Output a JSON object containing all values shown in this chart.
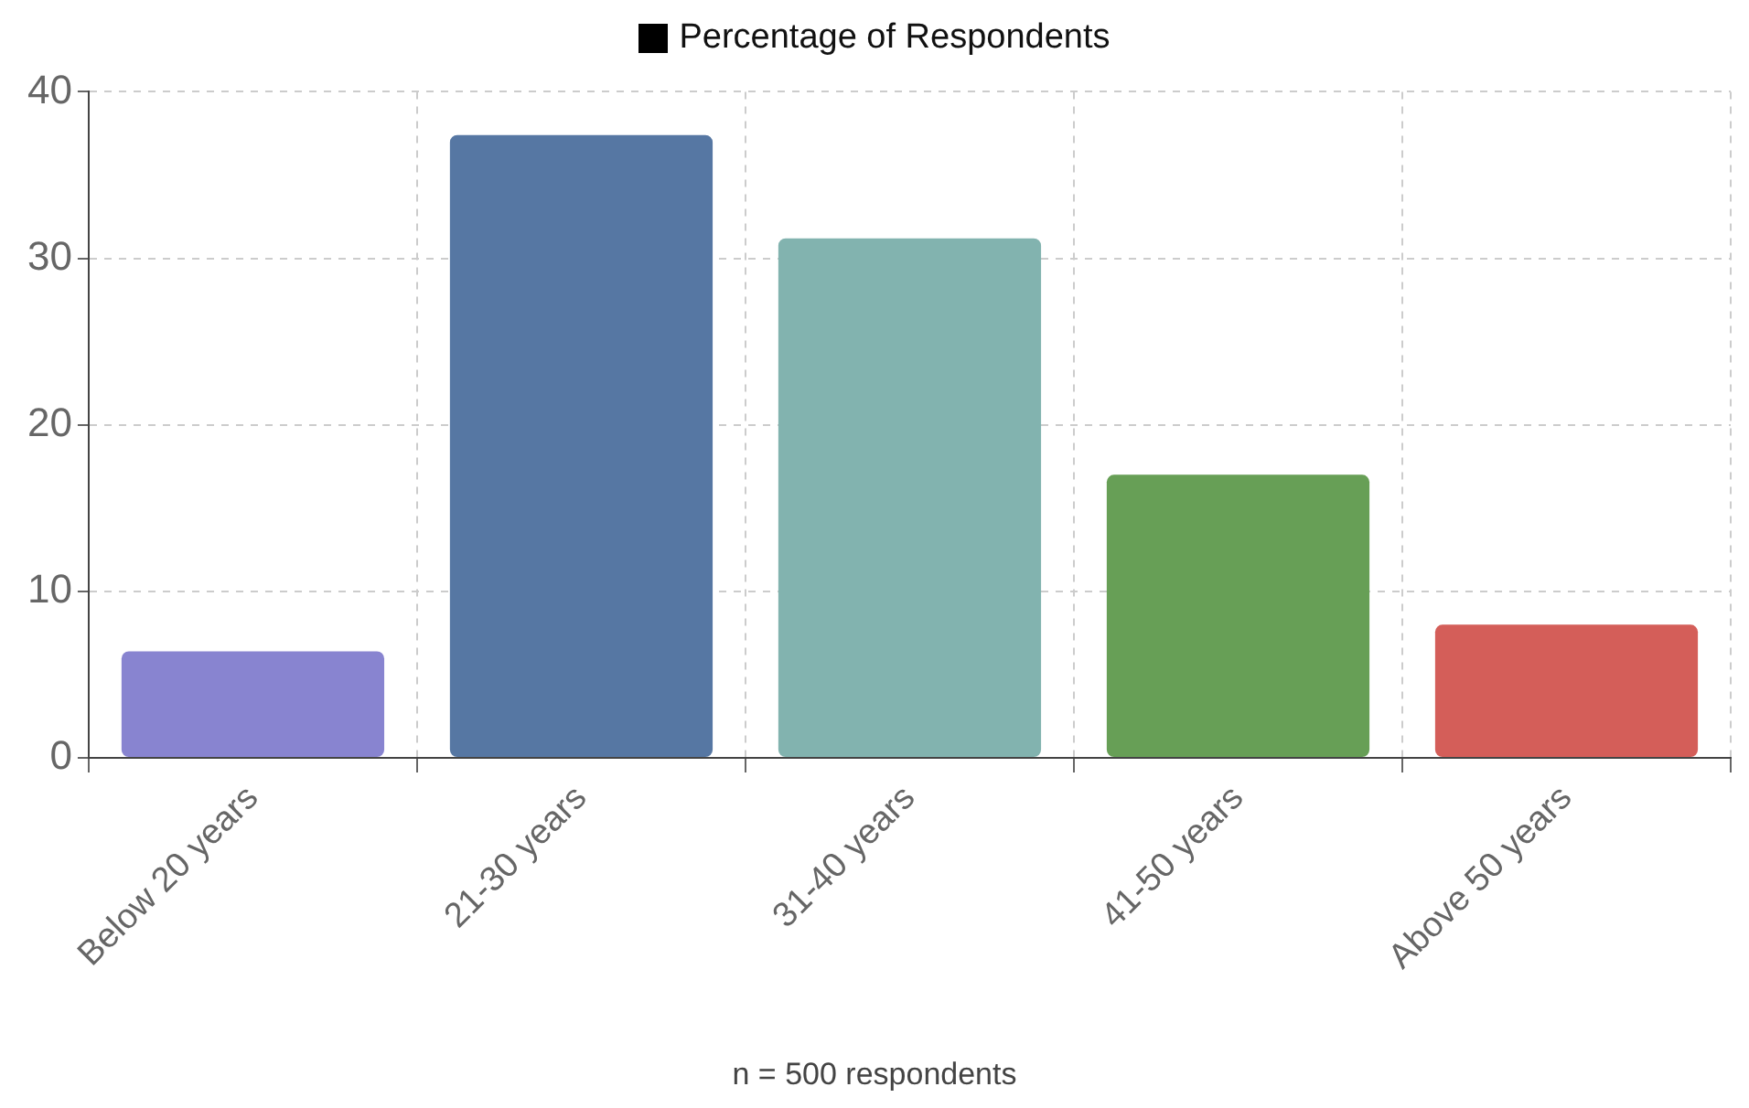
{
  "chart_data": {
    "type": "bar",
    "categories": [
      "Below 20 years",
      "21-30 years",
      "31-40 years",
      "41-50 years",
      "Above 50 years"
    ],
    "series": [
      {
        "name": "Percentage of Respondents",
        "color": "#000000",
        "colors": [
          "#8884d0",
          "#5677a3",
          "#82b3af",
          "#679f56",
          "#d45e59"
        ],
        "values": [
          6.4,
          37.4,
          31.2,
          17,
          8
        ]
      }
    ],
    "ylim": [
      0,
      40
    ],
    "yticks": [
      0,
      10,
      20,
      30,
      40
    ],
    "grid": true,
    "legend": "top",
    "annotations": [
      "n = 500 respondents"
    ]
  }
}
